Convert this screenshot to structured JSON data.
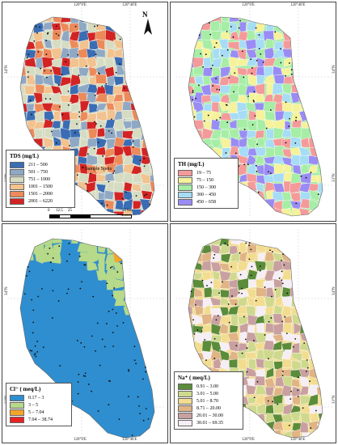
{
  "coords": {
    "lon1": "120°0'E",
    "lon2": "120°40'E",
    "lat1": "34°N",
    "lat2": "33°N"
  },
  "panels": [
    {
      "id": "tds",
      "legend_title": "TDS (mg/L)",
      "classes": [
        {
          "label": "211 – 500",
          "color": "#3a6db4"
        },
        {
          "label": "501 – 750",
          "color": "#8fa9c4"
        },
        {
          "label": "751 – 1000",
          "color": "#d5dcc1"
        },
        {
          "label": "1001 – 1500",
          "color": "#f2c28f"
        },
        {
          "label": "1501 – 2000",
          "color": "#ec8a5a"
        },
        {
          "label": "2001 – 6220",
          "color": "#d32424"
        }
      ],
      "sample_label": "Sample Spots"
    },
    {
      "id": "th",
      "legend_title": "TH (mg/L)",
      "classes": [
        {
          "label": "19 – 75",
          "color": "#f59a9a"
        },
        {
          "label": "75 – 150",
          "color": "#f5f29a"
        },
        {
          "label": "150 – 300",
          "color": "#a6eda6"
        },
        {
          "label": "300 – 450",
          "color": "#a6dcf5"
        },
        {
          "label": "450 – 658",
          "color": "#9a8cf5"
        }
      ]
    },
    {
      "id": "cl",
      "legend_title": "Cl⁻ ( meq/L)",
      "classes": [
        {
          "label": "0.17 – 3",
          "color": "#2f8ecf"
        },
        {
          "label": "3 – 5",
          "color": "#b6d98a"
        },
        {
          "label": "5 – 7.04",
          "color": "#f5a52a"
        },
        {
          "label": "7.04 – 38.74",
          "color": "#e62222"
        }
      ]
    },
    {
      "id": "na",
      "legend_title": "Na⁺ ( meq/L)",
      "classes": [
        {
          "label": "0.91 – 3.00",
          "color": "#5b8c3a"
        },
        {
          "label": "3.01 – 5.00",
          "color": "#cfd98e"
        },
        {
          "label": "5.01 – 8.70",
          "color": "#f2dc8f"
        },
        {
          "label": "8.71 – 20.00",
          "color": "#e0b485"
        },
        {
          "label": "20.01 – 30.00",
          "color": "#c9a0a0"
        },
        {
          "label": "30.01 – 69.35",
          "color": "#f5eef5"
        }
      ]
    }
  ],
  "north_label": "N",
  "scale": {
    "ticks": [
      "0",
      "12.5",
      "25",
      "50 km"
    ]
  }
}
